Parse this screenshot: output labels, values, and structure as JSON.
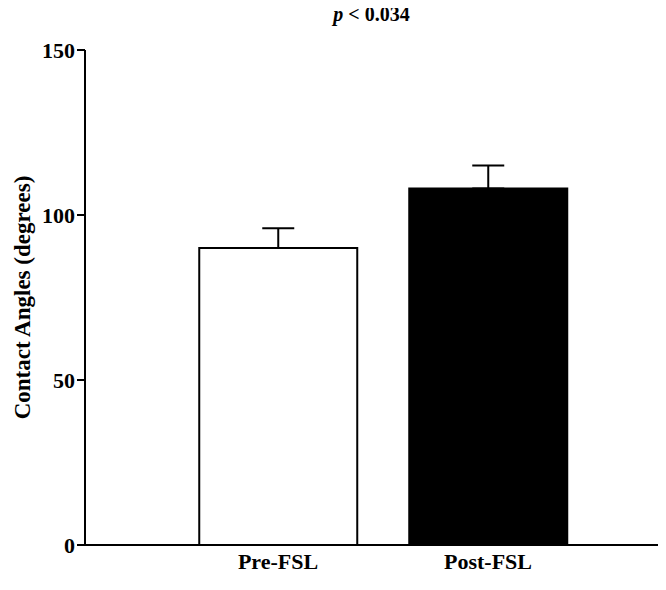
{
  "chart_data": {
    "type": "bar",
    "title": "p < 0.034",
    "y_label": "Contact Angles (degrees)",
    "categories": [
      "Pre-FSL",
      "Post-FSL"
    ],
    "values": [
      90,
      108
    ],
    "errors": [
      6,
      7
    ],
    "colors": [
      "#ffffff",
      "#000000"
    ],
    "ylim": [
      0,
      150
    ],
    "yticks": [
      0,
      50,
      100,
      150
    ],
    "grid": false
  }
}
